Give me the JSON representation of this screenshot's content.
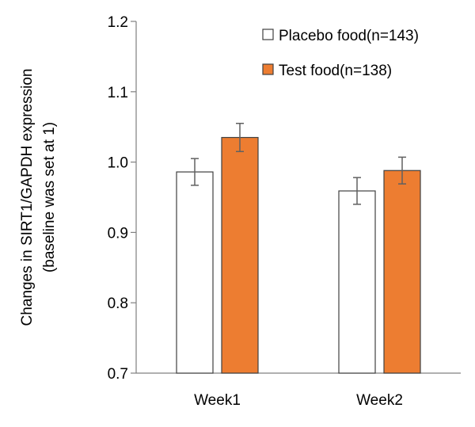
{
  "chart_data": {
    "type": "bar",
    "categories": [
      "Week1",
      "Week2"
    ],
    "series": [
      {
        "name": "Placebo food(n=143)",
        "values": [
          0.986,
          0.959
        ],
        "error": [
          0.019,
          0.019
        ],
        "fill": "#ffffff",
        "stroke": "#404040"
      },
      {
        "name": "Test food(n=138)",
        "values": [
          1.035,
          0.988
        ],
        "error": [
          0.02,
          0.019
        ],
        "fill": "#ed7d31",
        "stroke": "#404040"
      }
    ],
    "ylabel_lines": [
      "Changes in SIRT1/GAPDH expression",
      "(baseline was set at 1)"
    ],
    "ylim": [
      0.7,
      1.2
    ],
    "yticks": [
      "0.7",
      "0.8",
      "0.9",
      "1.0",
      "1.1",
      "1.2"
    ],
    "ytick_values": [
      0.7,
      0.8,
      0.9,
      1.0,
      1.1,
      1.2
    ],
    "grid": false,
    "legend_position": "top-right"
  }
}
